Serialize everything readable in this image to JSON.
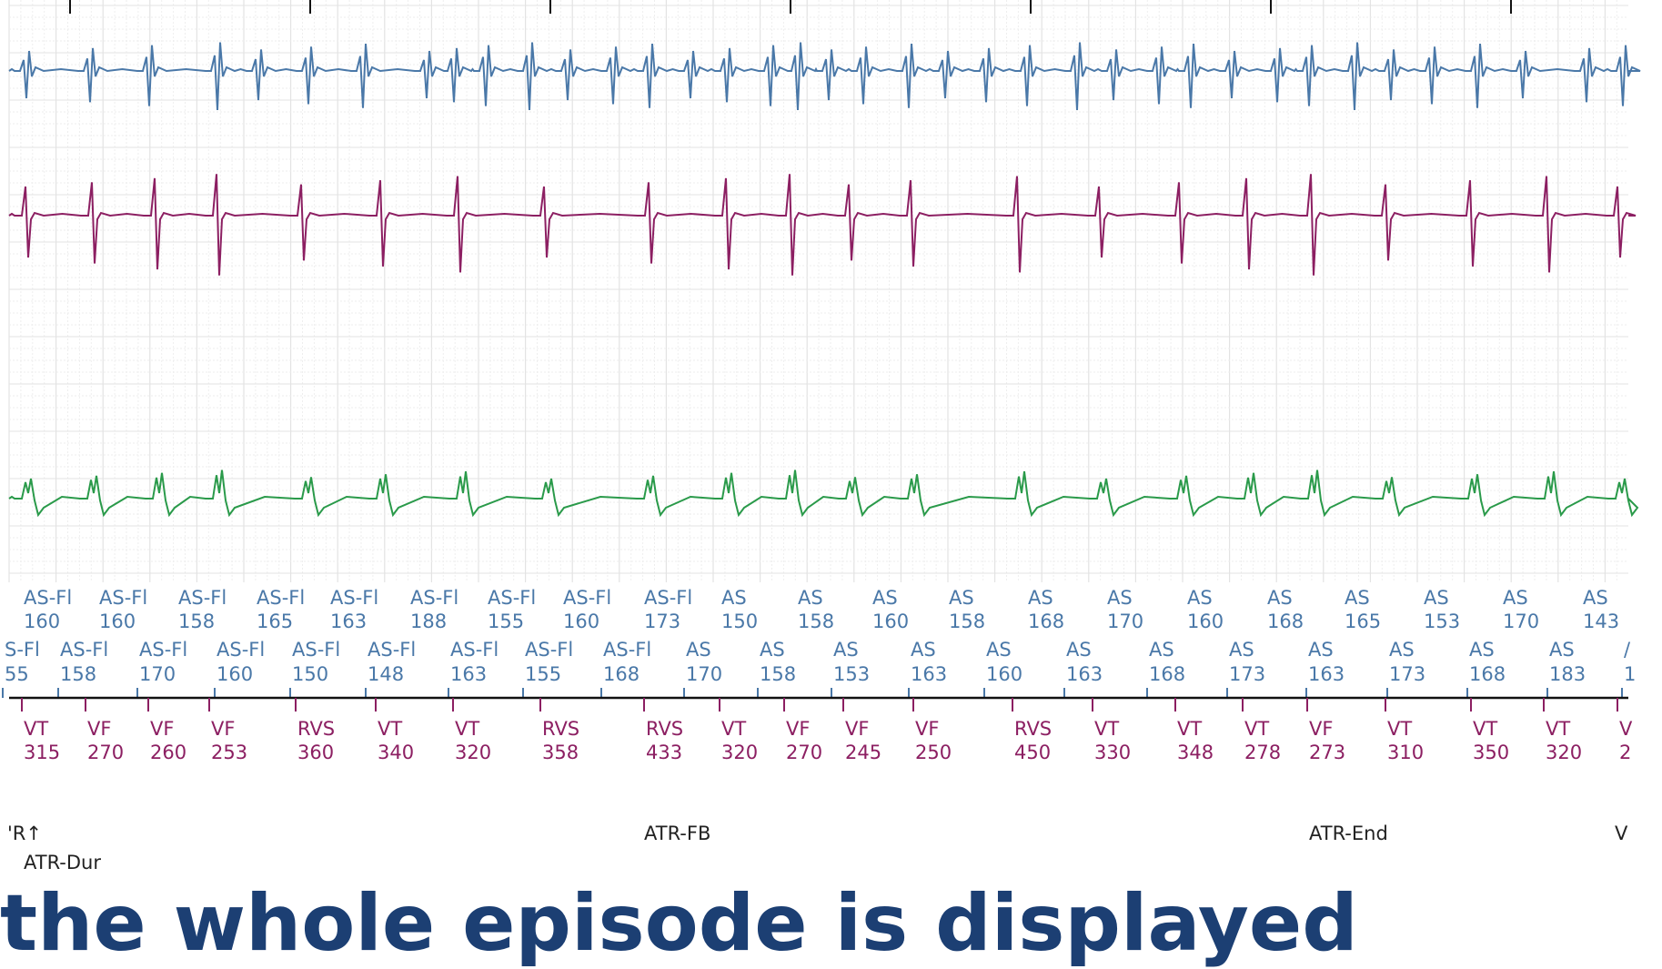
{
  "colors": {
    "atrial": "#4a78a8",
    "ventricular": "#8c1f62",
    "farfield": "#2a9a4a",
    "grid_major": "#e3e3e3",
    "grid_minor": "#eeeeee",
    "annotation": "#222222",
    "caption": "#1c3f73"
  },
  "markers": {
    "atrial_row1": [
      {
        "label": "AS-Fl",
        "value": "160"
      },
      {
        "label": "AS-Fl",
        "value": "160"
      },
      {
        "label": "AS-Fl",
        "value": "158"
      },
      {
        "label": "AS-Fl",
        "value": "165"
      },
      {
        "label": "AS-Fl",
        "value": "163"
      },
      {
        "label": "AS-Fl",
        "value": "188"
      },
      {
        "label": "AS-Fl",
        "value": "155"
      },
      {
        "label": "AS-Fl",
        "value": "160"
      },
      {
        "label": "AS-Fl",
        "value": "173"
      },
      {
        "label": "AS",
        "value": "150"
      },
      {
        "label": "AS",
        "value": "158"
      },
      {
        "label": "AS",
        "value": "160"
      },
      {
        "label": "AS",
        "value": "158"
      },
      {
        "label": "AS",
        "value": "168"
      },
      {
        "label": "AS",
        "value": "170"
      },
      {
        "label": "AS",
        "value": "160"
      },
      {
        "label": "AS",
        "value": "168"
      },
      {
        "label": "AS",
        "value": "165"
      },
      {
        "label": "AS",
        "value": "153"
      },
      {
        "label": "AS",
        "value": "170"
      },
      {
        "label": "AS",
        "value": "143"
      }
    ],
    "atrial_row2": [
      {
        "label": "S-Fl",
        "value": "55"
      },
      {
        "label": "AS-Fl",
        "value": "158"
      },
      {
        "label": "AS-Fl",
        "value": "170"
      },
      {
        "label": "AS-Fl",
        "value": "160"
      },
      {
        "label": "AS-Fl",
        "value": "150"
      },
      {
        "label": "AS-Fl",
        "value": "148"
      },
      {
        "label": "AS-Fl",
        "value": "163"
      },
      {
        "label": "AS-Fl",
        "value": "155"
      },
      {
        "label": "AS-Fl",
        "value": "168"
      },
      {
        "label": "AS",
        "value": "170"
      },
      {
        "label": "AS",
        "value": "158"
      },
      {
        "label": "AS",
        "value": "153"
      },
      {
        "label": "AS",
        "value": "163"
      },
      {
        "label": "AS",
        "value": "160"
      },
      {
        "label": "AS",
        "value": "163"
      },
      {
        "label": "AS",
        "value": "168"
      },
      {
        "label": "AS",
        "value": "173"
      },
      {
        "label": "AS",
        "value": "163"
      },
      {
        "label": "AS",
        "value": "173"
      },
      {
        "label": "AS",
        "value": "168"
      },
      {
        "label": "AS",
        "value": "183"
      },
      {
        "label": "/",
        "value": "1"
      }
    ],
    "ventricular": [
      {
        "label": "VT",
        "value": "315"
      },
      {
        "label": "VF",
        "value": "270"
      },
      {
        "label": "VF",
        "value": "260"
      },
      {
        "label": "VF",
        "value": "253"
      },
      {
        "label": "RVS",
        "value": "360"
      },
      {
        "label": "VT",
        "value": "340"
      },
      {
        "label": "VT",
        "value": "320"
      },
      {
        "label": "RVS",
        "value": "358"
      },
      {
        "label": "RVS",
        "value": "433"
      },
      {
        "label": "VT",
        "value": "320"
      },
      {
        "label": "VF",
        "value": "270"
      },
      {
        "label": "VF",
        "value": "245"
      },
      {
        "label": "VF",
        "value": "250"
      },
      {
        "label": "RVS",
        "value": "450"
      },
      {
        "label": "VT",
        "value": "330"
      },
      {
        "label": "VT",
        "value": "348"
      },
      {
        "label": "VT",
        "value": "278"
      },
      {
        "label": "VF",
        "value": "273"
      },
      {
        "label": "VT",
        "value": "310"
      },
      {
        "label": "VT",
        "value": "350"
      },
      {
        "label": "VT",
        "value": "320"
      },
      {
        "label": "V",
        "value": "2"
      }
    ]
  },
  "annotations": [
    {
      "name": "atr-start-annotation",
      "text": "'R↑"
    },
    {
      "name": "atr-dur-annotation",
      "text": "ATR-Dur"
    },
    {
      "name": "atr-fb-annotation",
      "text": "ATR-FB"
    },
    {
      "name": "atr-end-annotation",
      "text": "ATR-End"
    },
    {
      "name": "v-annotation",
      "text": "V"
    }
  ],
  "caption": "the whole episode is displayed"
}
